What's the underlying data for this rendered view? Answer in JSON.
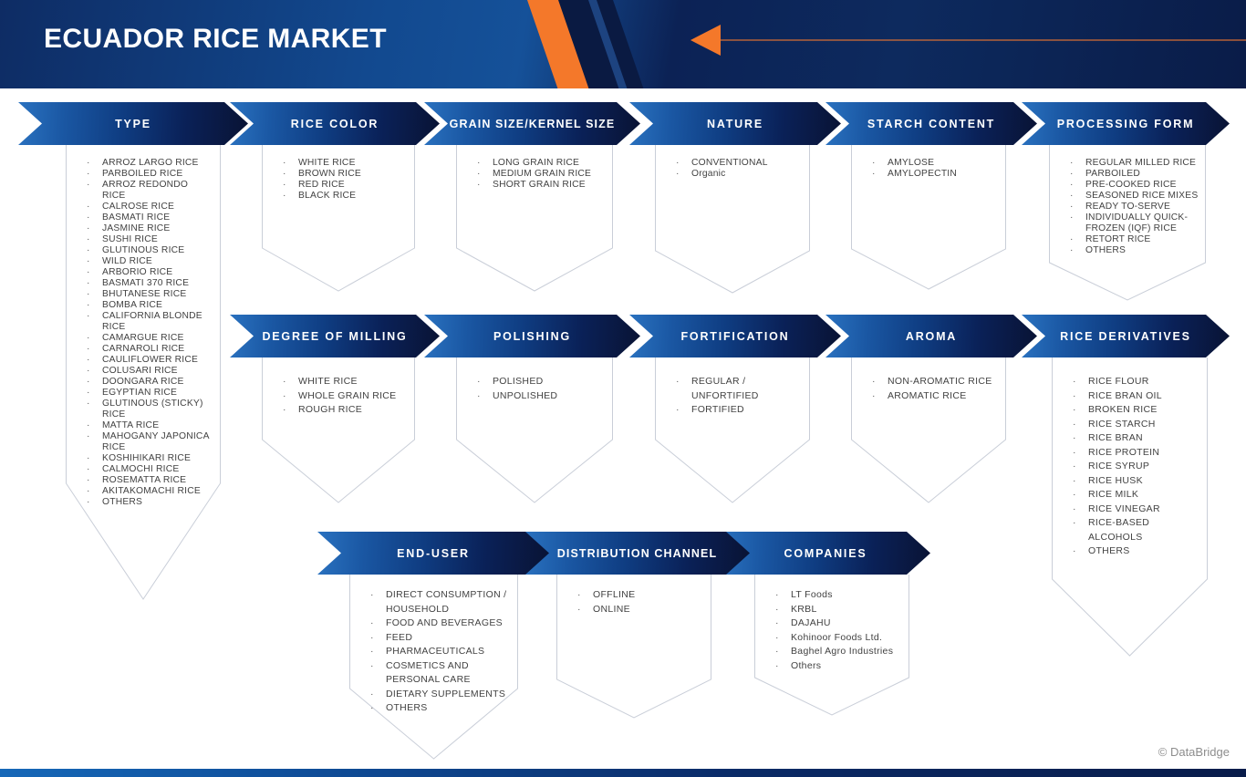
{
  "header": {
    "title": "ECUADOR RICE MARKET",
    "arrow_icon": "arrow-left-icon"
  },
  "footer": {
    "copyright": "© DataBridge"
  },
  "colors": {
    "accent_orange": "#F4782A",
    "banner_blue": "#1E63AE",
    "banner_dark_navy": "#0A1843",
    "outline_gray": "#C9CED8",
    "list_text_gray": "#424242",
    "copyright_gray": "#8D8D8D"
  },
  "segments": [
    {
      "id": "type",
      "label": "TYPE",
      "items": [
        "ARROZ LARGO RICE",
        "PARBOILED RICE",
        "ARROZ REDONDO RICE",
        "CALROSE RICE",
        "BASMATI RICE",
        "JASMINE RICE",
        "SUSHI RICE",
        "GLUTINOUS RICE",
        "WILD RICE",
        "ARBORIO RICE",
        "BASMATI 370 RICE",
        "BHUTANESE RICE",
        "BOMBA RICE",
        "CALIFORNIA BLONDE RICE",
        "CAMARGUE RICE",
        "CARNAROLI RICE",
        "CAULIFLOWER RICE",
        "COLUSARI RICE",
        "DOONGARA RICE",
        "EGYPTIAN RICE",
        "GLUTINOUS (STICKY) RICE",
        "MATTA RICE",
        "MAHOGANY JAPONICA RICE",
        "KOSHIHIKARI RICE",
        "CALMOCHI RICE",
        "ROSEMATTA RICE",
        "AKITAKOMACHI RICE",
        "OTHERS"
      ]
    },
    {
      "id": "rice-color",
      "label": "RICE COLOR",
      "items": [
        "WHITE RICE",
        "BROWN RICE",
        "RED RICE",
        "BLACK RICE"
      ]
    },
    {
      "id": "grain-size",
      "label": "GRAIN SIZE/KERNEL SIZE",
      "items": [
        "LONG GRAIN RICE",
        "MEDIUM GRAIN RICE",
        "SHORT GRAIN RICE"
      ]
    },
    {
      "id": "nature",
      "label": "NATURE",
      "items": [
        "CONVENTIONAL",
        "Organic"
      ]
    },
    {
      "id": "starch-content",
      "label": "STARCH CONTENT",
      "items": [
        "AMYLOSE",
        "AMYLOPECTIN"
      ]
    },
    {
      "id": "processing-form",
      "label": "PROCESSING FORM",
      "items": [
        "REGULAR MILLED RICE",
        "PARBOILED",
        "PRE-COOKED RICE",
        "SEASONED RICE MIXES",
        "READY TO-SERVE",
        "INDIVIDUALLY QUICK-FROZEN (IQF) RICE",
        "RETORT RICE",
        "OTHERS"
      ]
    },
    {
      "id": "degree-of-milling",
      "label": "DEGREE OF MILLING",
      "items": [
        "WHITE RICE",
        "WHOLE GRAIN RICE",
        "ROUGH RICE"
      ]
    },
    {
      "id": "polishing",
      "label": "POLISHING",
      "items": [
        "POLISHED",
        "UNPOLISHED"
      ]
    },
    {
      "id": "fortification",
      "label": "FORTIFICATION",
      "items": [
        "REGULAR / UNFORTIFIED",
        "FORTIFIED"
      ]
    },
    {
      "id": "aroma",
      "label": "AROMA",
      "items": [
        "NON-AROMATIC RICE",
        "AROMATIC RICE"
      ]
    },
    {
      "id": "rice-derivatives",
      "label": "RICE DERIVATIVES",
      "items": [
        "RICE FLOUR",
        "RICE BRAN OIL",
        "BROKEN RICE",
        "RICE STARCH",
        "RICE BRAN",
        "RICE PROTEIN",
        "RICE SYRUP",
        "RICE HUSK",
        "RICE MILK",
        "RICE VINEGAR",
        "RICE-BASED ALCOHOLS",
        "OTHERS"
      ]
    },
    {
      "id": "end-user",
      "label": "END-USER",
      "items": [
        "DIRECT CONSUMPTION / HOUSEHOLD",
        "FOOD AND BEVERAGES",
        "FEED",
        "PHARMACEUTICALS",
        "COSMETICS AND PERSONAL CARE",
        "DIETARY SUPPLEMENTS",
        "OTHERS"
      ]
    },
    {
      "id": "distribution-channel",
      "label": "DISTRIBUTION CHANNEL",
      "items": [
        "OFFLINE",
        "ONLINE"
      ]
    },
    {
      "id": "companies",
      "label": "COMPANIES",
      "items": [
        "LT Foods",
        "KRBL",
        "DAJAHU",
        "Kohinoor Foods Ltd.",
        "Baghel Agro Industries",
        "Others"
      ]
    }
  ]
}
